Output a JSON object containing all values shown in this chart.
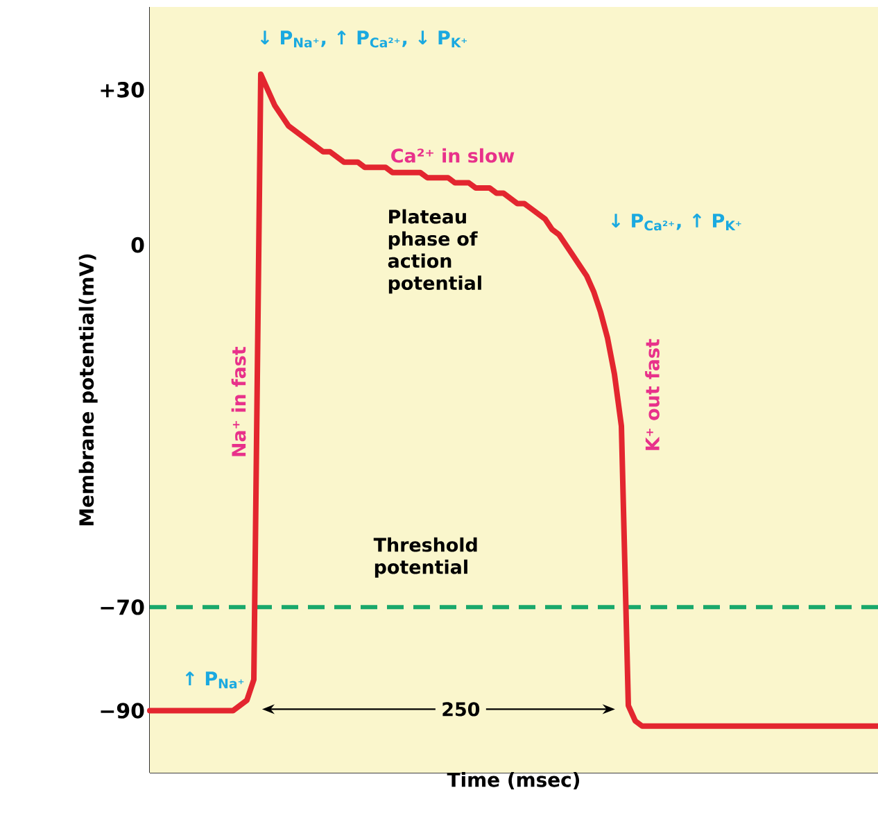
{
  "chart_data": {
    "type": "line",
    "xlabel": "Time (msec)",
    "ylabel": "Membrane potential(mV)",
    "ylim": [
      -102,
      46
    ],
    "yticks": [
      {
        "value": -100,
        "label": null
      },
      {
        "value": -90,
        "label": "−90"
      },
      {
        "value": -80,
        "label": null
      },
      {
        "value": -70,
        "label": "−70"
      },
      {
        "value": -60,
        "label": null
      },
      {
        "value": -50,
        "label": null
      },
      {
        "value": -40,
        "label": null
      },
      {
        "value": -30,
        "label": null
      },
      {
        "value": -20,
        "label": null
      },
      {
        "value": -10,
        "label": null
      },
      {
        "value": 0,
        "label": "0"
      },
      {
        "value": 10,
        "label": null
      },
      {
        "value": 20,
        "label": null
      },
      {
        "value": 30,
        "label": "+30"
      },
      {
        "value": 40,
        "label": null
      }
    ],
    "tick_labels": "y",
    "marker": "none",
    "line_style": "solid",
    "categories": [
      null,
      null,
      null,
      null,
      null,
      null,
      null,
      null,
      null,
      null,
      null,
      null,
      null,
      null,
      null,
      null,
      null,
      null,
      null,
      null,
      null,
      null,
      null,
      null,
      null,
      null,
      null,
      null,
      null,
      null,
      null,
      null,
      null,
      null,
      null,
      null,
      null,
      null,
      null,
      null,
      null,
      null,
      null,
      null,
      null,
      null,
      null,
      null,
      null,
      null,
      null,
      null,
      null,
      null,
      null,
      null,
      null,
      null,
      null,
      null,
      null,
      null,
      null,
      null,
      null,
      null,
      null,
      null,
      null,
      null,
      null,
      null,
      null,
      null,
      null,
      null,
      null,
      null,
      null,
      null,
      null,
      null,
      null,
      null,
      null,
      null,
      null,
      null,
      null,
      null,
      null,
      null,
      null,
      null,
      null,
      null,
      null,
      null,
      null,
      null,
      null,
      null,
      null,
      null,
      null,
      null
    ],
    "series": [
      {
        "color": "#e3262f",
        "values": [
          -90,
          -90,
          -90,
          -90,
          -90,
          -90,
          -90,
          -90,
          -90,
          -90,
          -90,
          -90,
          -90,
          -89,
          -88,
          -84,
          33,
          30,
          27,
          25,
          23,
          22,
          21,
          20,
          19,
          18,
          18,
          17,
          16,
          16,
          16,
          15,
          15,
          15,
          15,
          14,
          14,
          14,
          14,
          14,
          13,
          13,
          13,
          13,
          12,
          12,
          12,
          11,
          11,
          11,
          10,
          10,
          9,
          8,
          8,
          7,
          6,
          5,
          3,
          2,
          0,
          -2,
          -4,
          -6,
          -9,
          -13,
          -18,
          -25,
          -35,
          -89,
          -92,
          -93,
          -93,
          -93,
          -93,
          -93,
          -93,
          -93,
          -93,
          -93,
          -93,
          -93,
          -93,
          -93,
          -93,
          -93,
          -93,
          -93,
          -93,
          -93,
          -93,
          -93,
          -93,
          -93,
          -93,
          -93,
          -93,
          -93,
          -93,
          -93,
          -93,
          -93,
          -93,
          -93,
          -93,
          -93
        ]
      }
    ],
    "ref_lines": [
      {
        "axis": "y",
        "value": -70,
        "color": "#19a86b",
        "line_style": "dashed"
      }
    ],
    "annotations": [
      "↓ P$_{Na⁺}$, ↑ P$_{Ca²⁺}$, ↓ P$_{K⁺}$",
      "Ca²⁺ in slow",
      "Plateau phase of action potential",
      "↓ P$_{Ca²⁺}$, ↑ P$_{K⁺}$",
      "Na⁺ in fast",
      "K⁺ out fast",
      "↑ P$_{Na⁺}$",
      "Threshold potential",
      "250"
    ]
  }
}
